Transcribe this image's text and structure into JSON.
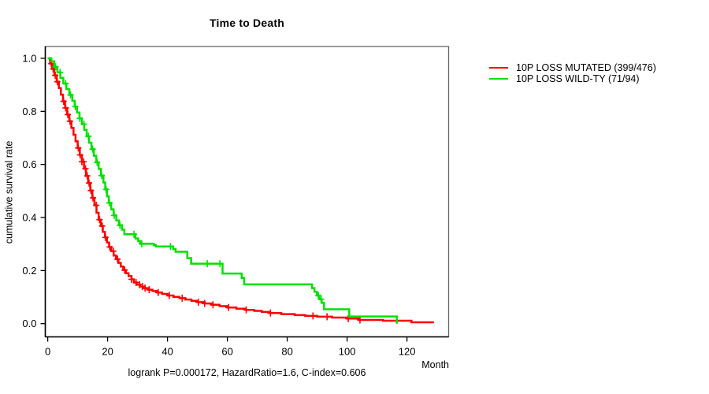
{
  "chart_data": {
    "type": "line",
    "subtype": "kaplan-meier-step-curves",
    "title": "Time to Death",
    "xlabel": "Month",
    "ylabel": "cumulative survival rate",
    "annotation": "logrank P=0.000172, HazardRatio=1.6, C-index=0.606",
    "grid": false,
    "legend_position": "right-outside",
    "xlim": [
      0,
      133
    ],
    "ylim": [
      0.0,
      1.0
    ],
    "x_ticks": [
      0,
      20,
      40,
      60,
      80,
      100,
      120
    ],
    "y_ticks": [
      0.0,
      0.2,
      0.4,
      0.6,
      0.8,
      1.0
    ],
    "y_tick_labels": [
      "0.0",
      "0.2",
      "0.4",
      "0.6",
      "0.8",
      "1.0"
    ],
    "series": [
      {
        "name": "10P LOSS MUTATED (399/476)",
        "color": "#ff0000",
        "end_time": 129,
        "points": [
          [
            0,
            1.0
          ],
          [
            0.8,
            0.98
          ],
          [
            1.5,
            0.96
          ],
          [
            2.2,
            0.936
          ],
          [
            3.0,
            0.912
          ],
          [
            3.7,
            0.888
          ],
          [
            4.4,
            0.863
          ],
          [
            5.1,
            0.838
          ],
          [
            5.8,
            0.813
          ],
          [
            6.5,
            0.788
          ],
          [
            7.2,
            0.763
          ],
          [
            7.9,
            0.738
          ],
          [
            8.6,
            0.712
          ],
          [
            9.3,
            0.687
          ],
          [
            10.0,
            0.662
          ],
          [
            10.7,
            0.636
          ],
          [
            11.4,
            0.61
          ],
          [
            12.1,
            0.584
          ],
          [
            12.8,
            0.557
          ],
          [
            13.5,
            0.53
          ],
          [
            14.2,
            0.502
          ],
          [
            14.9,
            0.474
          ],
          [
            15.6,
            0.446
          ],
          [
            16.3,
            0.418
          ],
          [
            17.0,
            0.392
          ],
          [
            17.7,
            0.368
          ],
          [
            18.4,
            0.346
          ],
          [
            19.1,
            0.325
          ],
          [
            19.8,
            0.306
          ],
          [
            20.5,
            0.289
          ],
          [
            21.2,
            0.273
          ],
          [
            22.0,
            0.257
          ],
          [
            22.8,
            0.243
          ],
          [
            23.6,
            0.229
          ],
          [
            24.4,
            0.215
          ],
          [
            25.2,
            0.202
          ],
          [
            26.1,
            0.19
          ],
          [
            27.0,
            0.179
          ],
          [
            28.0,
            0.167
          ],
          [
            28.8,
            0.155
          ],
          [
            29.7,
            0.147
          ],
          [
            30.8,
            0.14
          ],
          [
            32.0,
            0.134
          ],
          [
            33.5,
            0.128
          ],
          [
            35.0,
            0.123
          ],
          [
            36.6,
            0.117
          ],
          [
            38.2,
            0.112
          ],
          [
            40.0,
            0.106
          ],
          [
            42.0,
            0.101
          ],
          [
            44.0,
            0.096
          ],
          [
            46.0,
            0.091
          ],
          [
            48.0,
            0.086
          ],
          [
            50.0,
            0.081
          ],
          [
            52.4,
            0.076
          ],
          [
            54.8,
            0.071
          ],
          [
            57.4,
            0.066
          ],
          [
            60.0,
            0.061
          ],
          [
            63.0,
            0.056
          ],
          [
            66.0,
            0.052
          ],
          [
            69.0,
            0.048
          ],
          [
            71.5,
            0.044
          ],
          [
            74.0,
            0.04
          ],
          [
            78.0,
            0.036
          ],
          [
            82.5,
            0.032
          ],
          [
            86.0,
            0.029
          ],
          [
            90.0,
            0.026
          ],
          [
            95.0,
            0.023
          ],
          [
            100.0,
            0.019
          ],
          [
            104.0,
            0.014
          ],
          [
            112.0,
            0.011
          ],
          [
            121.5,
            0.005
          ]
        ],
        "censor_times": [
          1.2,
          1.8,
          2.5,
          3.2,
          5.3,
          6.0,
          6.7,
          7.4,
          10.2,
          10.8,
          11.4,
          12.0,
          12.6,
          13.2,
          13.8,
          14.4,
          15.1,
          16.2,
          17.3,
          18.2,
          19.3,
          20.7,
          21.9,
          23.3,
          25.7,
          28.0,
          29.5,
          30.7,
          31.6,
          32.5,
          33.9,
          36.9,
          40.6,
          44.9,
          50.3,
          52.4,
          55.2,
          60.4,
          66.3,
          74.4,
          88.6,
          93.3,
          100.4,
          104.3
        ]
      },
      {
        "name": "10P LOSS WILD-TY (71/94)",
        "color": "#00e000",
        "end_time": 116.6,
        "points": [
          [
            0,
            1.0
          ],
          [
            1.2,
            0.989
          ],
          [
            2.2,
            0.968
          ],
          [
            3.2,
            0.947
          ],
          [
            4.2,
            0.926
          ],
          [
            5.2,
            0.905
          ],
          [
            6.2,
            0.884
          ],
          [
            7.2,
            0.862
          ],
          [
            8.2,
            0.84
          ],
          [
            9.0,
            0.818
          ],
          [
            9.8,
            0.796
          ],
          [
            10.6,
            0.774
          ],
          [
            11.4,
            0.752
          ],
          [
            12.2,
            0.73
          ],
          [
            13.0,
            0.706
          ],
          [
            13.8,
            0.682
          ],
          [
            14.6,
            0.658
          ],
          [
            15.4,
            0.633
          ],
          [
            16.2,
            0.608
          ],
          [
            17.0,
            0.583
          ],
          [
            17.8,
            0.558
          ],
          [
            18.6,
            0.532
          ],
          [
            19.2,
            0.506
          ],
          [
            19.8,
            0.48
          ],
          [
            20.4,
            0.455
          ],
          [
            21.2,
            0.431
          ],
          [
            22.0,
            0.408
          ],
          [
            22.9,
            0.389
          ],
          [
            23.8,
            0.371
          ],
          [
            24.8,
            0.354
          ],
          [
            25.6,
            0.337
          ],
          [
            29.3,
            0.321
          ],
          [
            30.2,
            0.311
          ],
          [
            30.9,
            0.301
          ],
          [
            35.4,
            0.296
          ],
          [
            36.1,
            0.291
          ],
          [
            41.9,
            0.281
          ],
          [
            42.7,
            0.271
          ],
          [
            46.6,
            0.247
          ],
          [
            47.9,
            0.226
          ],
          [
            58.4,
            0.189
          ],
          [
            64.8,
            0.172
          ],
          [
            65.6,
            0.148
          ],
          [
            88.3,
            0.134
          ],
          [
            89.1,
            0.12
          ],
          [
            89.9,
            0.106
          ],
          [
            90.7,
            0.092
          ],
          [
            91.5,
            0.078
          ],
          [
            92.3,
            0.054
          ],
          [
            100.7,
            0.027
          ],
          [
            116.6,
            0.0
          ]
        ],
        "censor_times": [
          2.6,
          4.1,
          6.0,
          7.6,
          9.2,
          10.7,
          12.1,
          13.6,
          15.0,
          16.5,
          18.0,
          19.5,
          20.6,
          22.2,
          24.1,
          28.8,
          31.4,
          41.0,
          53.3,
          57.5,
          90.4,
          91.3
        ]
      }
    ]
  }
}
